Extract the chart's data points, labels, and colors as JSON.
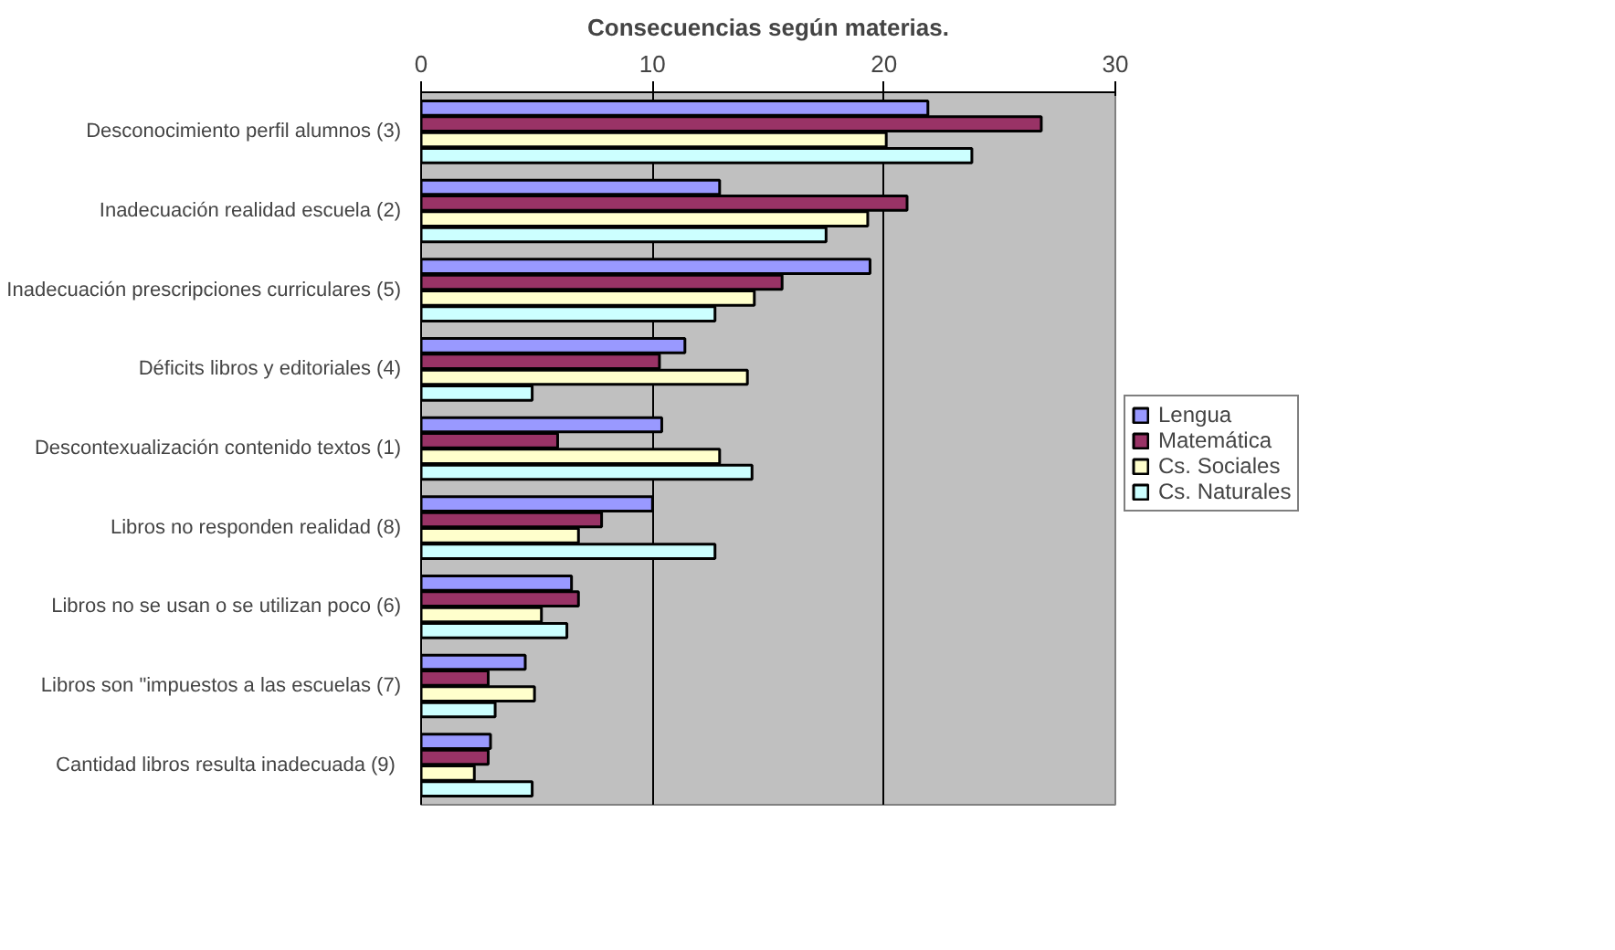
{
  "chart_data": {
    "type": "bar",
    "orientation": "horizontal",
    "title": "Consecuencias según materias.",
    "categories": [
      "Desconocimiento perfil alumnos (3)",
      "Inadecuación realidad escuela (2)",
      "Inadecuación prescripciones curriculares (5)",
      "Déficits libros y editoriales (4)",
      "Descontexualización contenido textos (1)",
      "Libros no responden realidad (8)",
      "Libros no se usan o se utilizan poco (6)",
      "Libros son \"impuestos a las escuelas (7)",
      "Cantidad libros resulta inadecuada  (9)"
    ],
    "series": [
      {
        "name": "Lengua",
        "color": "#9999ff",
        "values": [
          21.9,
          12.9,
          19.4,
          11.4,
          10.4,
          10.0,
          6.5,
          4.5,
          3.0
        ]
      },
      {
        "name": "Matemática",
        "color": "#993366",
        "values": [
          26.8,
          21.0,
          15.6,
          10.3,
          5.9,
          7.8,
          6.8,
          2.9,
          2.9
        ]
      },
      {
        "name": "Cs. Sociales",
        "color": "#ffffcc",
        "values": [
          20.1,
          19.3,
          14.4,
          14.1,
          12.9,
          6.8,
          5.2,
          4.9,
          2.3
        ]
      },
      {
        "name": "Cs. Naturales",
        "color": "#ccffff",
        "values": [
          23.8,
          17.5,
          12.7,
          4.8,
          14.3,
          12.7,
          6.3,
          3.2,
          4.8
        ]
      }
    ],
    "xlim": [
      0,
      30
    ],
    "xticks": [
      0,
      10,
      20,
      30
    ],
    "grid": "x",
    "legend": "right"
  }
}
